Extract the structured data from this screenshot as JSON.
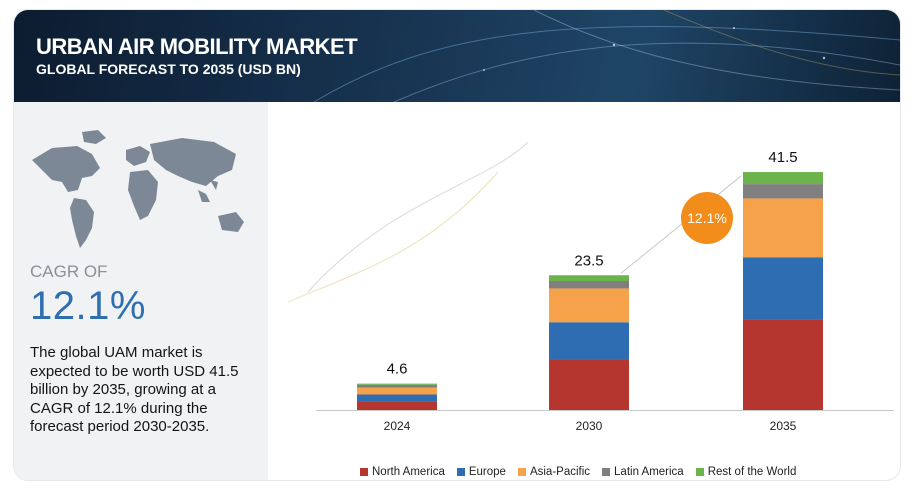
{
  "header": {
    "title": "URBAN AIR MOBILITY MARKET",
    "subtitle": "GLOBAL FORECAST TO 2035 (USD BN)"
  },
  "left_panel": {
    "cagr_label": "CAGR OF",
    "cagr_value": "12.1%",
    "description": "The global UAM market is expected to be worth USD 41.5 billion by 2035, growing at a CAGR of 12.1% during the forecast period 2030-2035."
  },
  "badge": {
    "text": "12.1%",
    "color": "#f28c1b"
  },
  "colors": {
    "North America": "#b5362e",
    "Europe": "#2f6db3",
    "Asia-Pacific": "#f6a24a",
    "Latin America": "#7f7f7f",
    "Rest of the World": "#6bb34a"
  },
  "chart_data": {
    "type": "bar",
    "stacked": true,
    "categories": [
      "2024",
      "2030",
      "2035"
    ],
    "totals": [
      "4.6",
      "23.5",
      "41.5"
    ],
    "total_values": [
      4.6,
      23.5,
      41.5
    ],
    "series": [
      {
        "name": "North America",
        "values": [
          1.5,
          8.8,
          15.8
        ]
      },
      {
        "name": "Europe",
        "values": [
          1.2,
          6.5,
          10.8
        ]
      },
      {
        "name": "Asia-Pacific",
        "values": [
          1.2,
          5.9,
          10.3
        ]
      },
      {
        "name": "Latin America",
        "values": [
          0.5,
          1.3,
          2.5
        ]
      },
      {
        "name": "Rest of the World",
        "values": [
          0.2,
          1.0,
          2.1
        ]
      }
    ],
    "ylim": [
      0,
      45
    ],
    "legend_position": "bottom",
    "grid": false
  }
}
